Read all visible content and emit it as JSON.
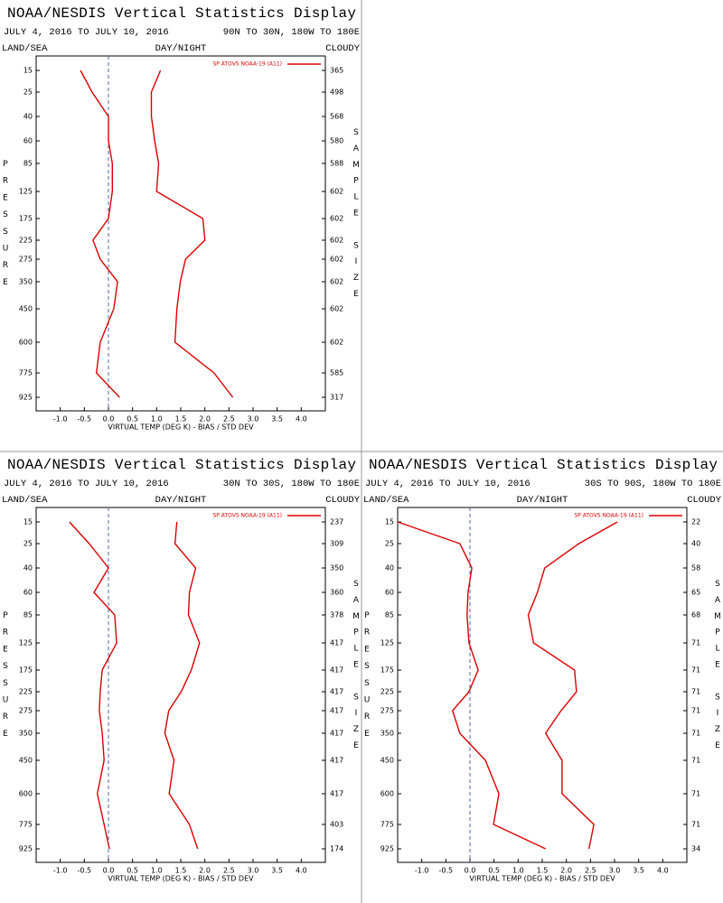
{
  "chart_data": [
    {
      "type": "line",
      "title": "NOAA/NESDIS Vertical Statistics Display",
      "subtitle": "JULY 4, 2016 TO JULY 10, 2016",
      "region": "90N TO 30N, 180W TO 180E",
      "land_sea": "LAND/SEA",
      "day_night": "DAY/NIGHT",
      "cloudy": "CLOUDY",
      "y_label": "PRESSURE",
      "y2_label": "SAMPLE SIZE",
      "x_label": "VIRTUAL TEMP (DEG K) - BIAS / STD DEV",
      "categories": [
        15,
        25,
        40,
        60,
        85,
        125,
        175,
        225,
        275,
        350,
        450,
        600,
        775,
        925
      ],
      "sample_sizes": [
        365,
        498,
        568,
        580,
        588,
        602,
        602,
        602,
        602,
        602,
        602,
        602,
        585,
        317
      ],
      "xlim": [
        -1.5,
        4.5
      ],
      "xticks": [
        {
          "value": -1,
          "label": "-1.0"
        },
        {
          "value": -0.5,
          "label": "-0.5"
        },
        {
          "value": 0,
          "label": "0.0"
        },
        {
          "value": 0.5,
          "label": "0.5"
        },
        {
          "value": 1,
          "label": "1.0"
        },
        {
          "value": 1.5,
          "label": "1.5"
        },
        {
          "value": 2,
          "label": "2.0"
        },
        {
          "value": 2.5,
          "label": "2.5"
        },
        {
          "value": 3,
          "label": "3.0"
        },
        {
          "value": 3.5,
          "label": "3.5"
        },
        {
          "value": 4,
          "label": "4.0"
        }
      ],
      "series": [
        {
          "name": "SP ATOVS NOAA-19 (A11)",
          "color": "#dd0000",
          "bias": [
            -0.58,
            -0.34,
            0.0,
            0.0,
            0.08,
            0.08,
            0.0,
            -0.32,
            -0.17,
            0.19,
            0.11,
            -0.17,
            -0.25,
            0.23
          ],
          "std_dev": [
            1.08,
            0.89,
            0.89,
            0.96,
            1.04,
            1.0,
            1.96,
            2.0,
            1.6,
            1.49,
            1.42,
            1.38,
            2.19,
            2.58
          ]
        }
      ]
    },
    {
      "type": "line",
      "title": "NOAA/NESDIS Vertical Statistics Display",
      "subtitle": "JULY 4, 2016 TO JULY 10, 2016",
      "region": "30N TO 30S, 180W TO 180E",
      "land_sea": "LAND/SEA",
      "day_night": "DAY/NIGHT",
      "cloudy": "CLOUDY",
      "y_label": "PRESSURE",
      "y2_label": "SAMPLE SIZE",
      "x_label": "VIRTUAL TEMP (DEG K) - BIAS / STD DEV",
      "categories": [
        15,
        25,
        40,
        60,
        85,
        125,
        175,
        225,
        275,
        350,
        450,
        600,
        775,
        925
      ],
      "sample_sizes": [
        237,
        309,
        350,
        360,
        378,
        417,
        417,
        417,
        417,
        417,
        417,
        417,
        403,
        174
      ],
      "xlim": [
        -1.5,
        4.5
      ],
      "xticks": [
        {
          "value": -1,
          "label": "-1.0"
        },
        {
          "value": -0.5,
          "label": "-0.5"
        },
        {
          "value": 0,
          "label": "0.0"
        },
        {
          "value": 0.5,
          "label": "0.5"
        },
        {
          "value": 1,
          "label": "1.0"
        },
        {
          "value": 1.5,
          "label": "1.5"
        },
        {
          "value": 2,
          "label": "2.0"
        },
        {
          "value": 2.5,
          "label": "2.5"
        },
        {
          "value": 3,
          "label": "3.0"
        },
        {
          "value": 3.5,
          "label": "3.5"
        },
        {
          "value": 4,
          "label": "4.0"
        }
      ],
      "series": [
        {
          "name": "SP ATOVS NOAA-19 (A11)",
          "color": "#dd0000",
          "bias": [
            -0.81,
            -0.4,
            0.0,
            -0.3,
            0.13,
            0.17,
            -0.13,
            -0.17,
            -0.19,
            -0.13,
            -0.09,
            -0.23,
            -0.09,
            0.02
          ],
          "std_dev": [
            1.42,
            1.38,
            1.81,
            1.68,
            1.66,
            1.89,
            1.72,
            1.51,
            1.25,
            1.17,
            1.36,
            1.26,
            1.68,
            1.85
          ]
        }
      ]
    },
    {
      "type": "line",
      "title": "NOAA/NESDIS Vertical Statistics Display",
      "subtitle": "JULY 4, 2016 TO JULY 10, 2016",
      "region": "30S TO 90S, 180W TO 180E",
      "land_sea": "LAND/SEA",
      "day_night": "DAY/NIGHT",
      "cloudy": "CLOUDY",
      "y_label": "PRESSURE",
      "y2_label": "SAMPLE SIZE",
      "x_label": "VIRTUAL TEMP (DEG K) - BIAS / STD DEV",
      "categories": [
        15,
        25,
        40,
        60,
        85,
        125,
        175,
        225,
        275,
        350,
        450,
        600,
        775,
        925
      ],
      "sample_sizes": [
        22,
        40,
        58,
        65,
        68,
        71,
        71,
        71,
        71,
        71,
        71,
        71,
        71,
        34
      ],
      "xlim": [
        -1.5,
        4.5
      ],
      "xticks": [
        {
          "value": -1,
          "label": "-1.0"
        },
        {
          "value": -0.5,
          "label": "-0.5"
        },
        {
          "value": 0,
          "label": "0.0"
        },
        {
          "value": 0.5,
          "label": "0.5"
        },
        {
          "value": 1,
          "label": "1.0"
        },
        {
          "value": 1.5,
          "label": "1.5"
        },
        {
          "value": 2,
          "label": "2.0"
        },
        {
          "value": 2.5,
          "label": "2.5"
        },
        {
          "value": 3,
          "label": "3.0"
        },
        {
          "value": 3.5,
          "label": "3.5"
        },
        {
          "value": 4,
          "label": "4.0"
        }
      ],
      "series": [
        {
          "name": "SP ATOVS NOAA-19 (A11)",
          "color": "#dd0000",
          "bias": [
            -1.5,
            -0.21,
            0.04,
            -0.04,
            -0.06,
            -0.02,
            0.17,
            -0.02,
            -0.36,
            -0.21,
            0.32,
            0.6,
            0.49,
            1.57
          ],
          "std_dev": [
            3.06,
            2.26,
            1.55,
            1.4,
            1.21,
            1.32,
            2.17,
            2.21,
            1.89,
            1.57,
            1.91,
            1.91,
            2.57,
            2.47
          ]
        }
      ]
    }
  ]
}
